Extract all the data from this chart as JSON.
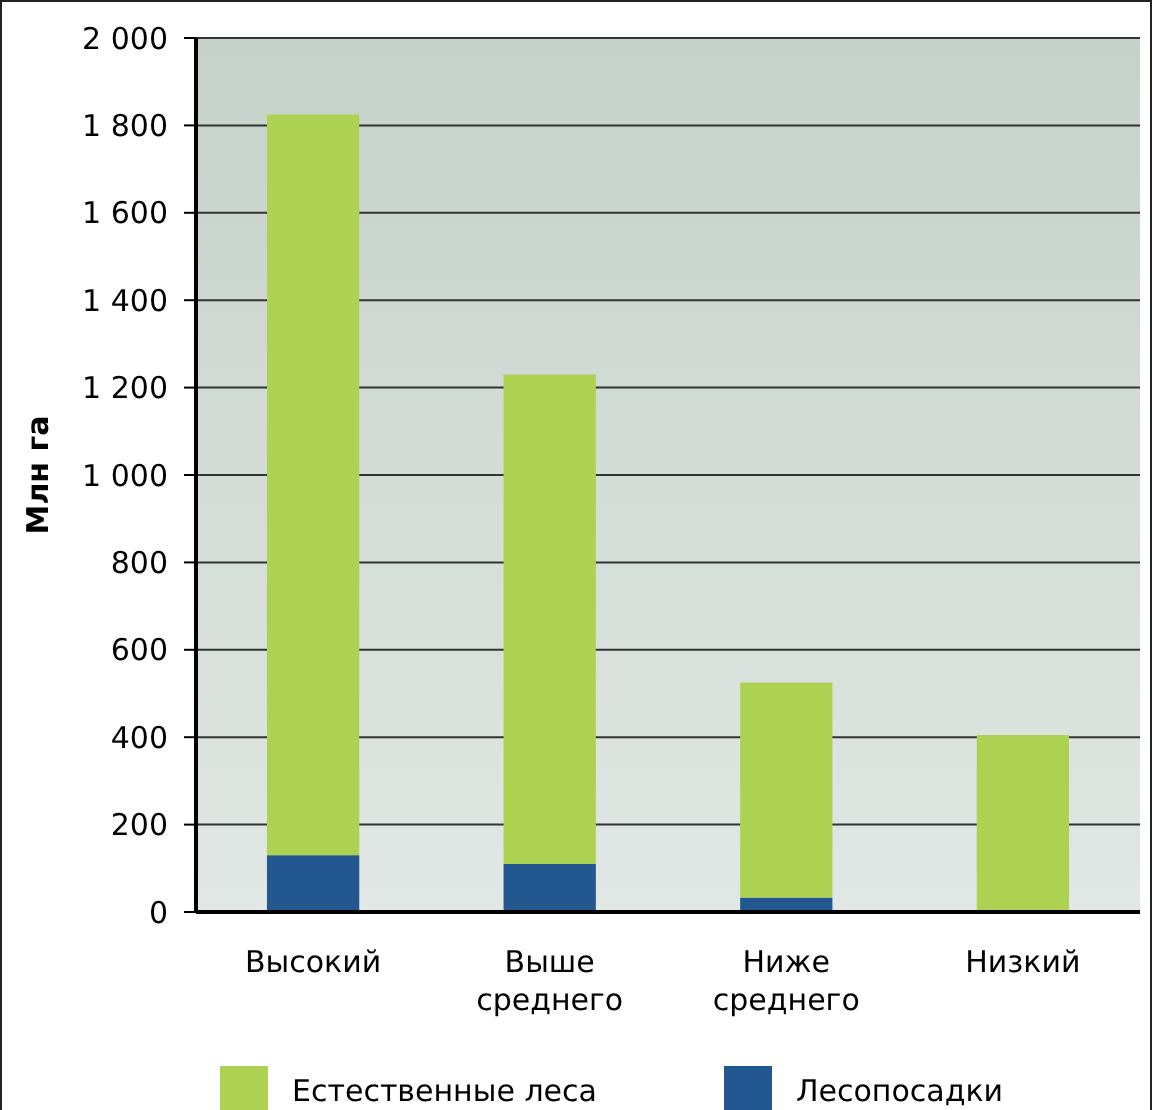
{
  "chart_data": {
    "type": "bar",
    "stacked": true,
    "ylabel": "Млн га",
    "categories": [
      "Высокий",
      "Выше среднего",
      "Ниже среднего",
      "Низкий"
    ],
    "series": [
      {
        "name": "Лесопосадки",
        "color": "#23578f",
        "values": [
          130,
          110,
          33,
          0
        ]
      },
      {
        "name": "Естественные леса",
        "color": "#add151",
        "values": [
          1695,
          1120,
          492,
          405
        ]
      }
    ],
    "ylim": [
      0,
      2000
    ],
    "yticks": [
      0,
      200,
      400,
      600,
      800,
      {
        "value": 1000,
        "label": "1 000"
      },
      {
        "value": 1200,
        "label": "1 200"
      },
      {
        "value": 1400,
        "label": "1 400"
      },
      {
        "value": 1600,
        "label": "1 600"
      },
      {
        "value": 1800,
        "label": "1 800"
      },
      {
        "value": 2000,
        "label": "2 000"
      }
    ],
    "grid": "y",
    "legend": "bottom"
  }
}
